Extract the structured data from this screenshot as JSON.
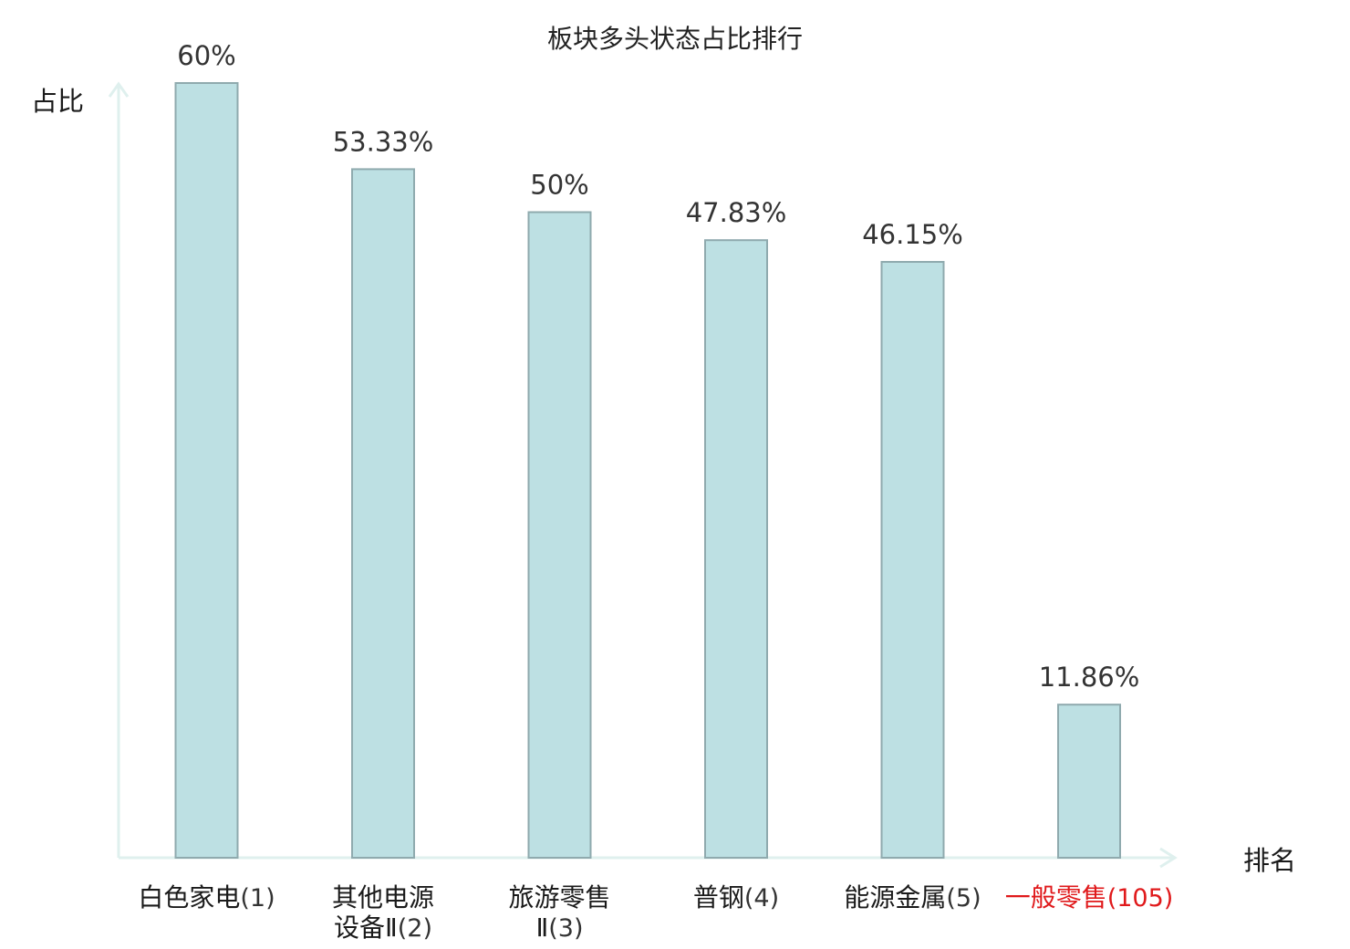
{
  "chart_data": {
    "type": "bar",
    "title": "板块多头状态占比排行",
    "ylabel": "占比",
    "xlabel": "排名",
    "ylim": [
      0,
      60
    ],
    "grid": false,
    "categories": [
      {
        "name_lines": [
          "白色家电"
        ],
        "rank_line": 0,
        "rank": "(1)",
        "highlight": false
      },
      {
        "name_lines": [
          "其他电源",
          "设备Ⅱ"
        ],
        "rank_line": 1,
        "rank": "(2)",
        "highlight": false
      },
      {
        "name_lines": [
          "旅游零售",
          "Ⅱ"
        ],
        "rank_line": 1,
        "rank": "(3)",
        "highlight": false
      },
      {
        "name_lines": [
          "普钢"
        ],
        "rank_line": 0,
        "rank": "(4)",
        "highlight": false
      },
      {
        "name_lines": [
          "能源金属"
        ],
        "rank_line": 0,
        "rank": "(5)",
        "highlight": false
      },
      {
        "name_lines": [
          "一般零售"
        ],
        "rank_line": 0,
        "rank": "(105)",
        "highlight": true
      }
    ],
    "values": [
      60,
      53.33,
      50,
      47.83,
      46.15,
      11.86
    ],
    "value_labels": [
      "60%",
      "53.33%",
      "50%",
      "47.83%",
      "46.15%",
      "11.86%"
    ],
    "colors": {
      "bar_fill": "#bde0e3",
      "bar_stroke": "#8faaae",
      "axis": "#dff0ee",
      "text": "#1a1a1a",
      "rank_text": "#333333",
      "highlight": "#e0191b"
    }
  }
}
